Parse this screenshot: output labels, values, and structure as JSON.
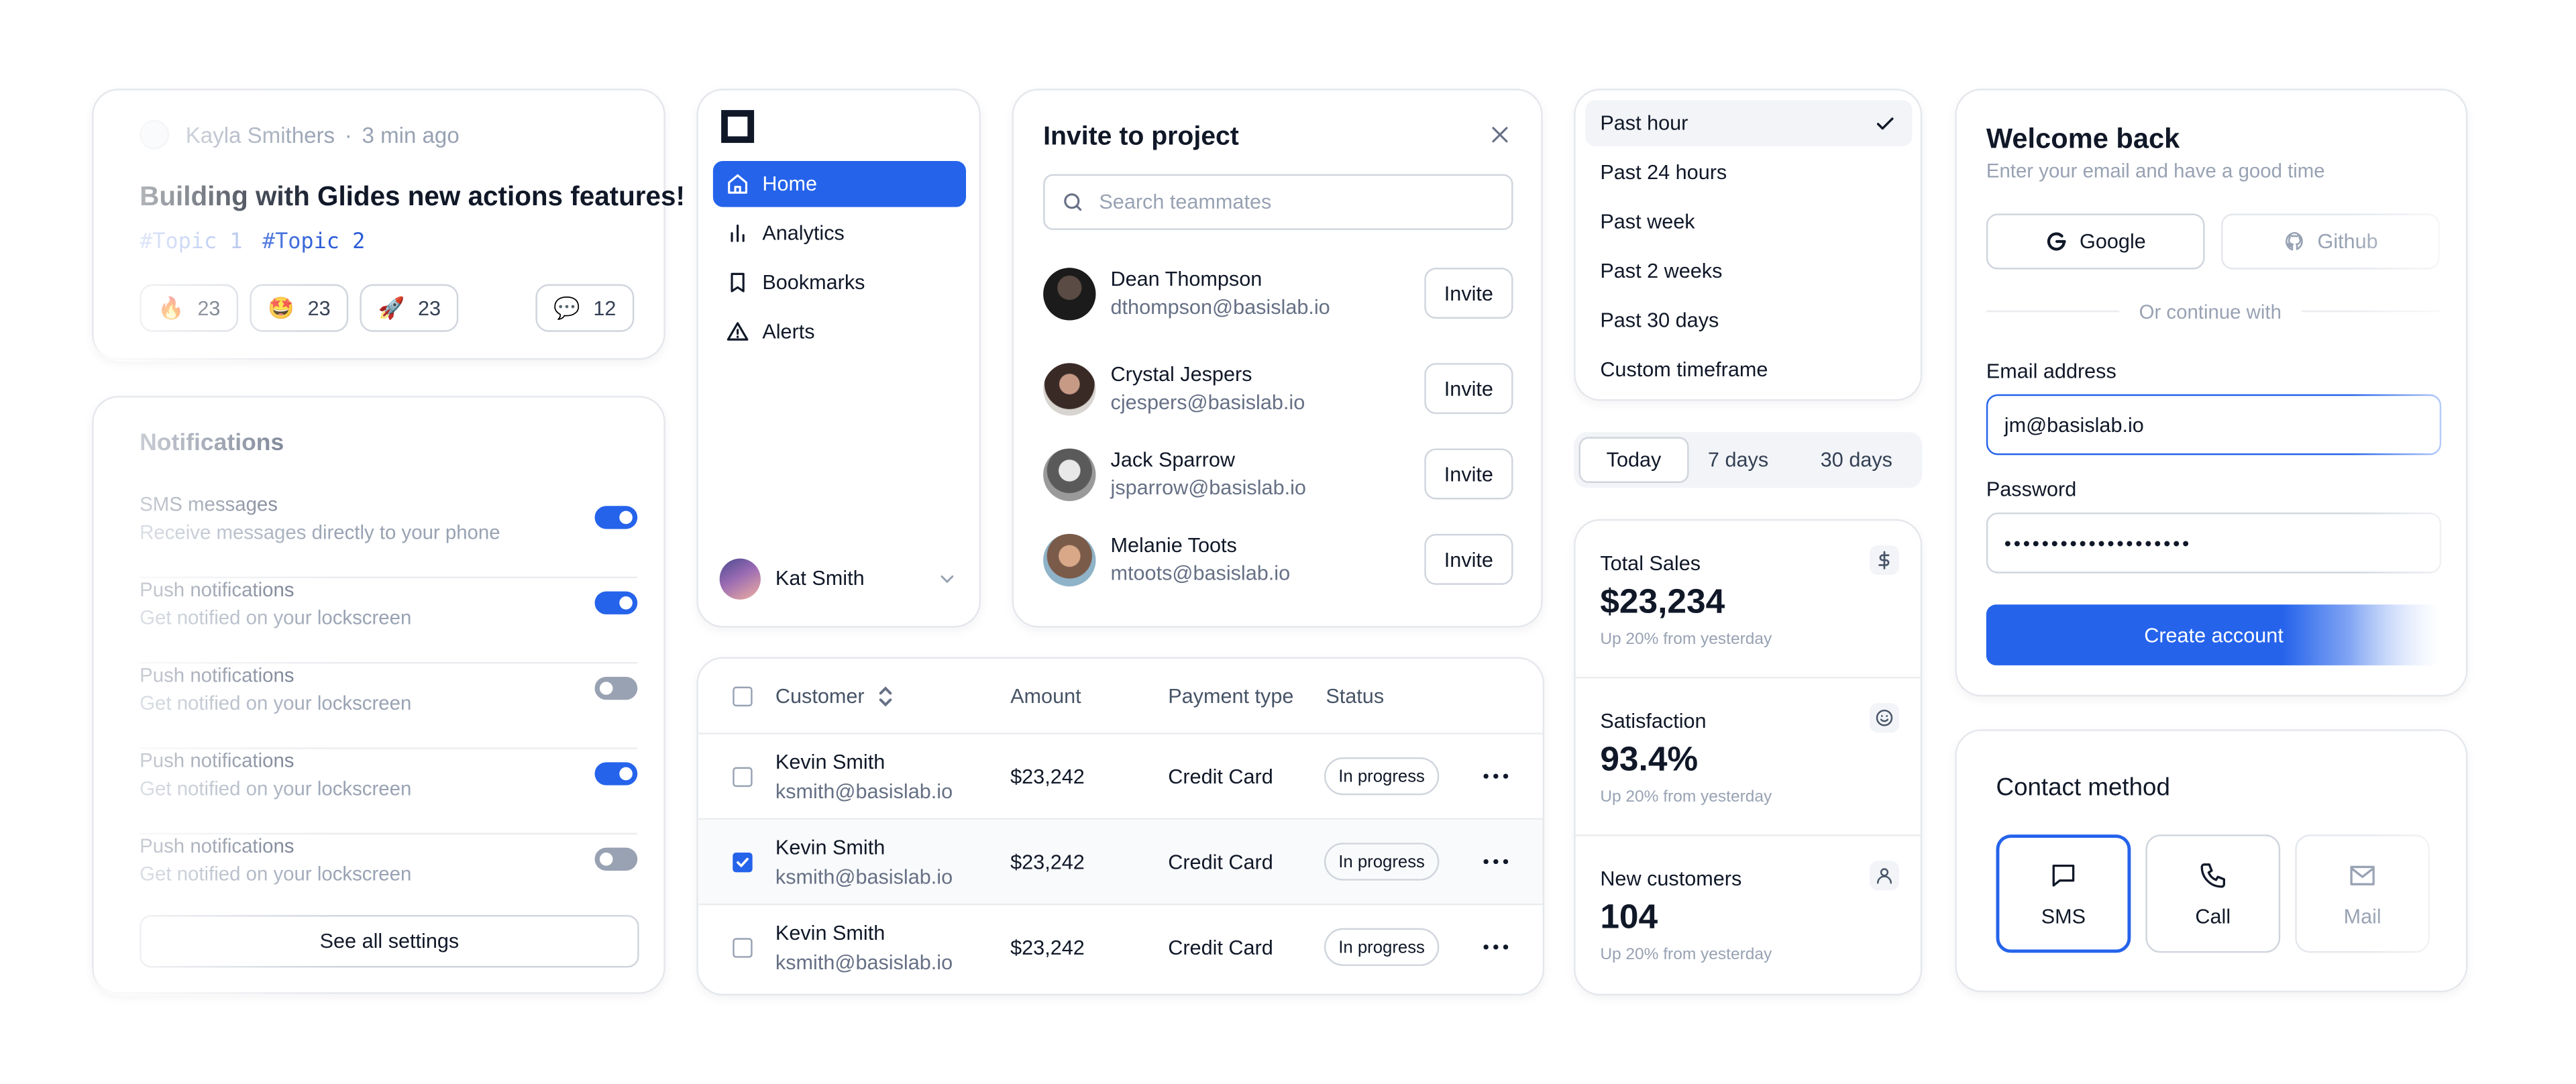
{
  "post": {
    "author": "Kayla Smithers",
    "separator": "·",
    "time": "3 min ago",
    "title": "Building with Glides new actions features!",
    "tags": [
      "#Topic 1",
      "#Topic 2"
    ],
    "reactions": [
      {
        "icon": "fire-emoji",
        "glyph": "🔥",
        "count": "23"
      },
      {
        "icon": "starstruck-emoji",
        "glyph": "🤩",
        "count": "23"
      },
      {
        "icon": "rocket-emoji",
        "glyph": "🚀",
        "count": "23"
      }
    ],
    "comments": {
      "icon": "speech-bubble-emoji",
      "glyph": "💬",
      "count": "12"
    }
  },
  "notifications": {
    "title": "Notifications",
    "items": [
      {
        "title": "SMS messages",
        "desc": "Receive messages directly to your phone",
        "enabled": true
      },
      {
        "title": "Push notifications",
        "desc": "Get notified on your lockscreen",
        "enabled": true
      },
      {
        "title": "Push notifications",
        "desc": "Get notified on your lockscreen",
        "enabled": false
      },
      {
        "title": "Push notifications",
        "desc": "Get notified on your lockscreen",
        "enabled": true
      },
      {
        "title": "Push notifications",
        "desc": "Get notified on your lockscreen",
        "enabled": false
      }
    ],
    "see_all": "See all settings"
  },
  "sidebar": {
    "items": [
      {
        "label": "Home",
        "icon": "home-icon",
        "active": true
      },
      {
        "label": "Analytics",
        "icon": "bar-chart-icon",
        "active": false
      },
      {
        "label": "Bookmarks",
        "icon": "bookmark-icon",
        "active": false
      },
      {
        "label": "Alerts",
        "icon": "warning-icon",
        "active": false
      }
    ],
    "user": "Kat Smith"
  },
  "invite": {
    "title": "Invite to project",
    "search_placeholder": "Search teammates",
    "button_label": "Invite",
    "members": [
      {
        "name": "Dean Thompson",
        "email": "dthompson@basislab.io"
      },
      {
        "name": "Crystal Jespers",
        "email": "cjespers@basislab.io"
      },
      {
        "name": "Jack Sparrow",
        "email": "jsparrow@basislab.io"
      },
      {
        "name": "Melanie Toots",
        "email": "mtoots@basislab.io"
      }
    ]
  },
  "table": {
    "headers": {
      "customer": "Customer",
      "amount": "Amount",
      "payment": "Payment type",
      "status": "Status"
    },
    "rows": [
      {
        "name": "Kevin Smith",
        "email": "ksmith@basislab.io",
        "amount": "$23,242",
        "payment": "Credit Card",
        "status": "In progress",
        "checked": false
      },
      {
        "name": "Kevin Smith",
        "email": "ksmith@basislab.io",
        "amount": "$23,242",
        "payment": "Credit Card",
        "status": "In progress",
        "checked": true
      },
      {
        "name": "Kevin Smith",
        "email": "ksmith@basislab.io",
        "amount": "$23,242",
        "payment": "Credit Card",
        "status": "In progress",
        "checked": false
      }
    ]
  },
  "time_menu": {
    "items": [
      "Past hour",
      "Past 24 hours",
      "Past week",
      "Past 2 weeks",
      "Past 30 days",
      "Custom timeframe"
    ],
    "selected": "Past hour"
  },
  "range_tabs": {
    "items": [
      "Today",
      "7 days",
      "30 days"
    ],
    "selected": "Today"
  },
  "stats": [
    {
      "label": "Total Sales",
      "value": "$23,234",
      "sub": "Up 20% from yesterday",
      "icon": "dollar-icon"
    },
    {
      "label": "Satisfaction",
      "value": "93.4%",
      "sub": "Up 20% from yesterday",
      "icon": "smile-icon"
    },
    {
      "label": "New customers",
      "value": "104",
      "sub": "Up 20% from yesterday",
      "icon": "user-icon"
    }
  ],
  "login": {
    "title": "Welcome back",
    "subtitle": "Enter your email and have a good time",
    "google": "Google",
    "github": "Github",
    "divider": "Or continue with",
    "email_label": "Email address",
    "email_value": "jm@basislab.io",
    "password_label": "Password",
    "password_value": "••••••••••••••••••••",
    "submit": "Create account"
  },
  "contact": {
    "title": "Contact method",
    "options": [
      {
        "label": "SMS",
        "icon": "message-icon",
        "selected": true
      },
      {
        "label": "Call",
        "icon": "phone-icon",
        "selected": false
      },
      {
        "label": "Mail",
        "icon": "mail-icon",
        "selected": false
      }
    ]
  },
  "colors": {
    "accent": "#2563eb",
    "text": "#101828",
    "muted": "#98a2b3",
    "border": "#d0d5dd"
  }
}
